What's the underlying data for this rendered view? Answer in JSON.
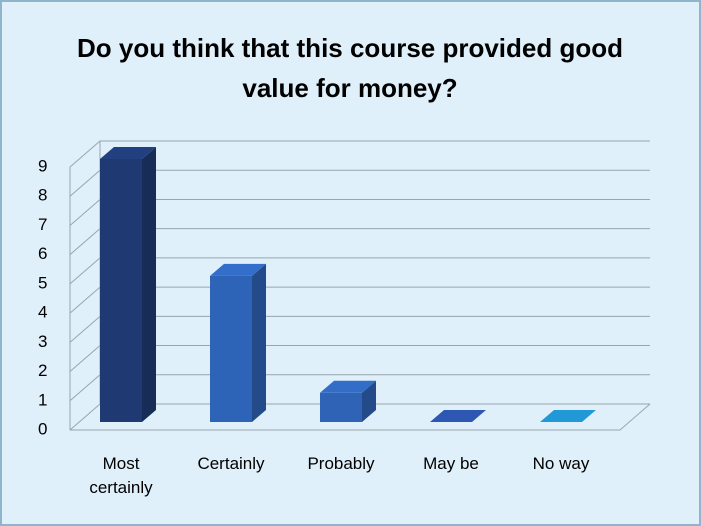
{
  "chart_data": {
    "type": "bar3d",
    "title": "Do you think that this course provided good value for money?",
    "categories": [
      "Most certainly",
      "Certainly",
      "Probably",
      "May be",
      "No way"
    ],
    "values": [
      9,
      5,
      1,
      0,
      0
    ],
    "colors": [
      "#1f3a73",
      "#2e64b8",
      "#2e63b6",
      "#2a4fa3",
      "#1e8bc3"
    ],
    "ylim": [
      0,
      9
    ],
    "yticks": [
      0,
      1,
      2,
      3,
      4,
      5,
      6,
      7,
      8,
      9
    ],
    "grid": true
  }
}
